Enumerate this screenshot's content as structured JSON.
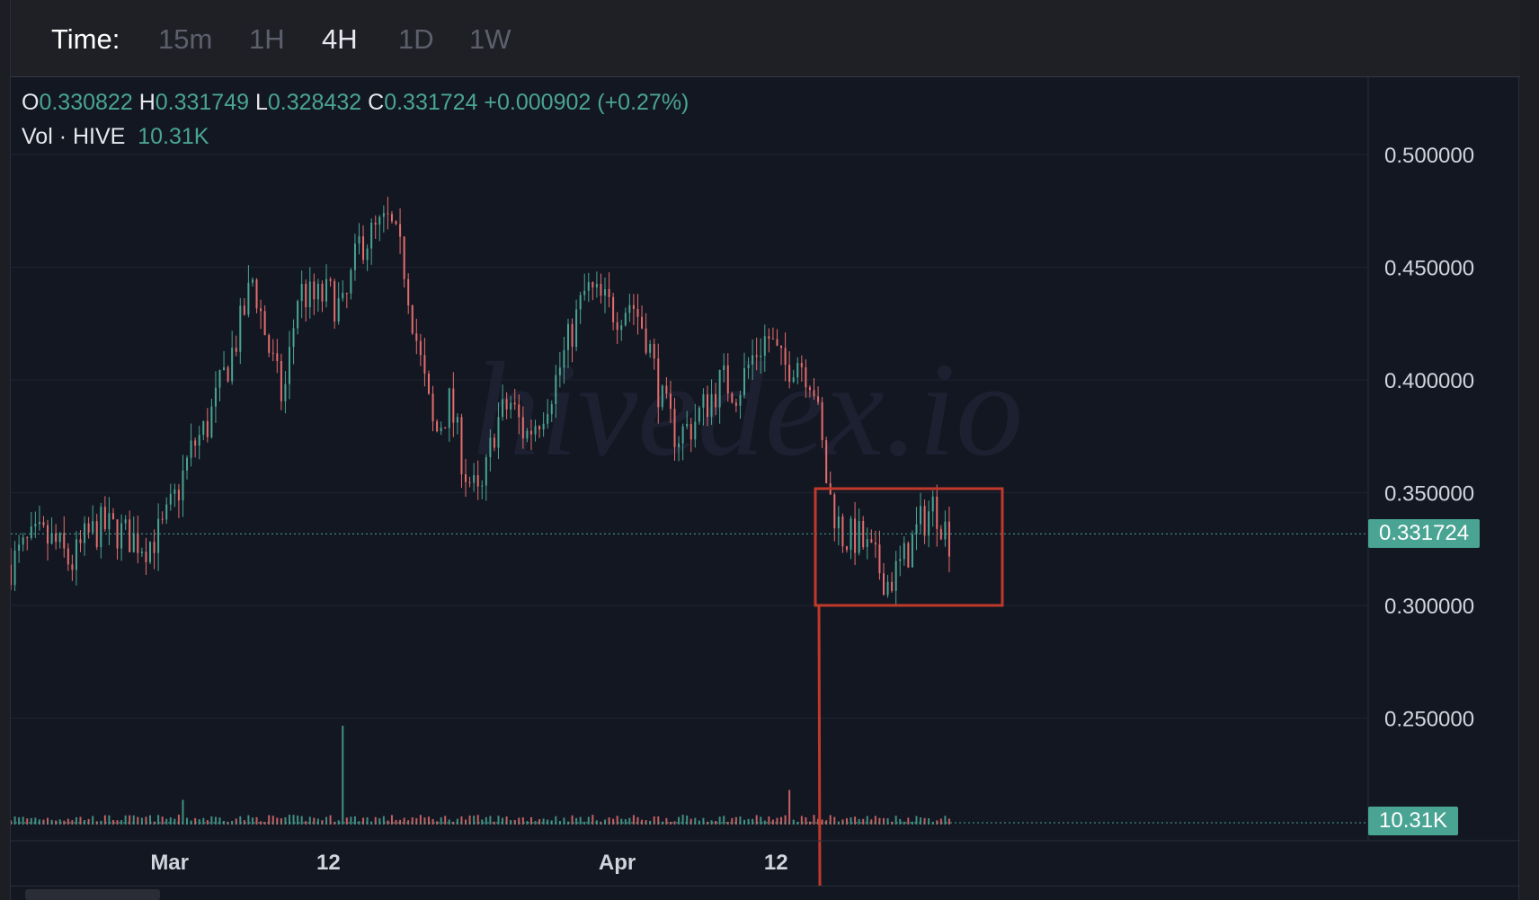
{
  "toolbar": {
    "time_label": "Time:",
    "timeframes": [
      "15m",
      "1H",
      "4H",
      "1D",
      "1W"
    ],
    "active": "4H"
  },
  "legend": {
    "o_key": "O",
    "o": "0.330822",
    "h_key": "H",
    "h": "0.331749",
    "l_key": "L",
    "l": "0.328432",
    "c_key": "C",
    "c": "0.331724",
    "change": "+0.000902 (+0.27%)",
    "vol_label": "Vol · HIVE",
    "vol": "10.31K"
  },
  "watermark": "hivedex.io",
  "price_tag": "0.331724",
  "volume_tag": "10.31K",
  "colors": {
    "up": "#4aa493",
    "down": "#e46d6d",
    "highlight": "#c0392b",
    "background": "#131722"
  },
  "chart_data": {
    "type": "candlestick",
    "y_ticks": [
      "0.500000",
      "0.450000",
      "0.400000",
      "0.350000",
      "0.300000",
      "0.250000"
    ],
    "ylim": [
      0.225,
      0.5
    ],
    "x_ticks": [
      "Mar",
      "12",
      "Apr",
      "12"
    ],
    "x_dates": [
      "2024-02-19",
      "2024-03-01",
      "2024-03-12",
      "2024-04-01",
      "2024-04-12",
      "2024-04-25"
    ],
    "x_domain": [
      "2024-02-19",
      "2024-04-25"
    ],
    "last_price": 0.331724,
    "last_volume": "10.31K",
    "close_path": [
      0.318,
      0.326,
      0.33,
      0.327,
      0.318,
      0.33,
      0.335,
      0.333,
      0.33,
      0.327,
      0.333,
      0.35,
      0.37,
      0.38,
      0.4,
      0.42,
      0.445,
      0.415,
      0.39,
      0.44,
      0.435,
      0.438,
      0.43,
      0.46,
      0.465,
      0.47,
      0.45,
      0.41,
      0.375,
      0.39,
      0.36,
      0.345,
      0.38,
      0.39,
      0.375,
      0.385,
      0.4,
      0.42,
      0.44,
      0.435,
      0.43,
      0.435,
      0.42,
      0.39,
      0.375,
      0.38,
      0.39,
      0.4,
      0.395,
      0.41,
      0.42,
      0.405,
      0.41,
      0.4,
      0.35,
      0.33,
      0.33,
      0.32,
      0.31,
      0.32,
      0.335,
      0.345,
      0.33
    ],
    "volume_spikes": [
      {
        "date": "2024-03-13",
        "level": 1.0
      },
      {
        "date": "2024-04-13",
        "level": 0.35
      },
      {
        "date": "2024-03-02",
        "level": 0.25
      }
    ]
  }
}
